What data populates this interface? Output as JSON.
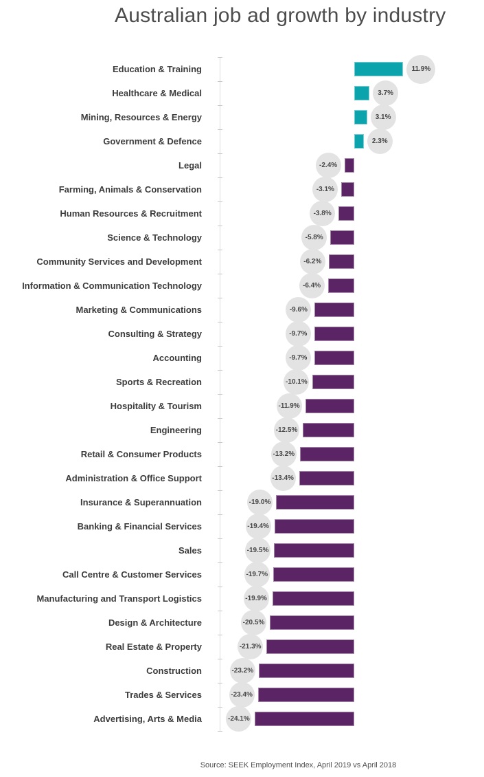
{
  "title": "Australian job ad growth by industry",
  "source": "Source: SEEK Employment Index, April 2019 vs April 2018",
  "colors": {
    "positive_bar": "#0ba4ac",
    "negative_bar": "#5b2565",
    "bubble_fill": "#e3e3e3",
    "label_text": "#3c3c3c",
    "value_text": "#474747",
    "title_text": "#4c4c4c",
    "axis_line": "#dcdcdc"
  },
  "chart_data": {
    "type": "bar",
    "orientation": "horizontal",
    "unit": "%",
    "title": "Australian job ad growth by industry",
    "grid": false,
    "legend": false,
    "xlim": [
      -25,
      13
    ],
    "categories": [
      "Education & Training",
      "Healthcare & Medical",
      "Mining, Resources & Energy",
      "Government & Defence",
      "Legal",
      "Farming, Animals & Conservation",
      "Human Resources & Recruitment",
      "Science & Technology",
      "Community Services and Development",
      "Information & Communication Technology",
      "Marketing & Communications",
      "Consulting & Strategy",
      "Accounting",
      "Sports & Recreation",
      "Hospitality & Tourism",
      "Engineering",
      "Retail & Consumer Products",
      "Administration & Office Support",
      "Insurance & Superannuation",
      "Banking & Financial Services",
      "Sales",
      "Call Centre & Customer Services",
      "Manufacturing and Transport Logistics",
      "Design & Architecture",
      "Real Estate & Property",
      "Construction",
      "Trades & Services",
      "Advertising, Arts & Media"
    ],
    "values": [
      11.9,
      3.7,
      3.1,
      2.3,
      -2.4,
      -3.1,
      -3.8,
      -5.8,
      -6.2,
      -6.4,
      -9.6,
      -9.7,
      -9.7,
      -10.1,
      -11.9,
      -12.5,
      -13.2,
      -13.4,
      -19.0,
      -19.4,
      -19.5,
      -19.7,
      -19.9,
      -20.5,
      -21.3,
      -23.2,
      -23.4,
      -24.1
    ],
    "value_labels": [
      "11.9%",
      "3.7%",
      "3.1%",
      "2.3%",
      "-2.4%",
      "-3.1%",
      "-3.8%",
      "-5.8%",
      "-6.2%",
      "-6.4%",
      "-9.6%",
      "-9.7%",
      "-9.7%",
      "-10.1%",
      "-11.9%",
      "-12.5%",
      "-13.2%",
      "-13.4%",
      "-19.0%",
      "-19.4%",
      "-19.5%",
      "-19.7%",
      "-19.9%",
      "-20.5%",
      "-21.3%",
      "-23.2%",
      "-23.4%",
      "-24.1%"
    ]
  }
}
